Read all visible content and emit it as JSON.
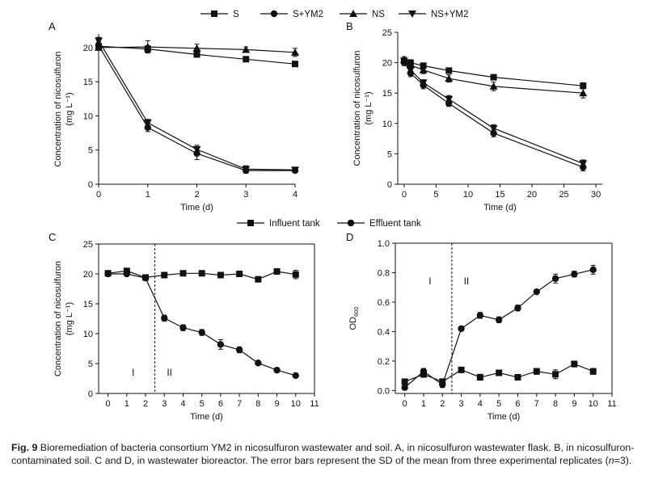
{
  "legend_top": {
    "items": [
      {
        "label": "S",
        "marker": "square"
      },
      {
        "label": "S+YM2",
        "marker": "circle"
      },
      {
        "label": "NS",
        "marker": "triangle-up"
      },
      {
        "label": "NS+YM2",
        "marker": "triangle-down"
      }
    ]
  },
  "legend_bottom": {
    "items": [
      {
        "label": "Influent tank",
        "marker": "square"
      },
      {
        "label": "Effluent tank",
        "marker": "circle"
      }
    ]
  },
  "caption": {
    "prefix": "Fig. 9",
    "text": " Bioremediation of bacteria consortium YM2 in nicosulfuron wastewater and soil.  A, in nicosulfuron wastewater flask.  B, in nicosulfuron-contaminated soil.  C and D, in wastewater bioreactor.  The error bars represent the SD of the mean from three experimental replicates (",
    "n_italic": "n",
    "suffix": "=3)."
  },
  "chart_data": [
    {
      "panel": "A",
      "type": "line",
      "xlabel": "Time (d)",
      "ylabel": [
        "Concentration of nicosulfuron",
        "(mg L⁻¹)"
      ],
      "xlim": [
        0,
        4
      ],
      "ylim": [
        0,
        22
      ],
      "xticks": [
        0,
        1,
        2,
        3,
        4
      ],
      "yticks": [
        0,
        5,
        10,
        15,
        20
      ],
      "series": [
        {
          "name": "S",
          "marker": "square",
          "x": [
            0,
            1,
            2,
            3,
            4
          ],
          "y": [
            20.2,
            19.8,
            19.0,
            18.3,
            17.6
          ],
          "err": [
            0.4,
            0.5,
            0.4,
            0.3,
            0.3
          ]
        },
        {
          "name": "S+YM2",
          "marker": "circle",
          "x": [
            0,
            1,
            2,
            3,
            4
          ],
          "y": [
            20.3,
            8.3,
            4.5,
            2.0,
            2.0
          ],
          "err": [
            0.5,
            0.6,
            0.9,
            0.4,
            0.3
          ]
        },
        {
          "name": "NS",
          "marker": "triangle-up",
          "x": [
            0,
            1,
            2,
            3,
            4
          ],
          "y": [
            20.0,
            20.1,
            19.9,
            19.7,
            19.3
          ],
          "err": [
            0.3,
            0.9,
            0.6,
            0.4,
            0.6
          ]
        },
        {
          "name": "NS+YM2",
          "marker": "triangle-down",
          "x": [
            0,
            1,
            2,
            3,
            4
          ],
          "y": [
            21.0,
            9.0,
            5.1,
            2.2,
            2.1
          ],
          "err": [
            0.5,
            0.5,
            0.6,
            0.5,
            0.3
          ]
        }
      ]
    },
    {
      "panel": "B",
      "type": "line",
      "xlabel": "Time (d)",
      "ylabel": [
        "Concentration of nicosulfuron",
        "(mg L⁻¹)"
      ],
      "xlim": [
        -1,
        31
      ],
      "ylim": [
        0,
        25
      ],
      "xticks": [
        0,
        5,
        10,
        15,
        20,
        25,
        30
      ],
      "yticks": [
        0,
        5,
        10,
        15,
        20,
        25
      ],
      "series": [
        {
          "name": "S",
          "marker": "square",
          "x": [
            0,
            1,
            3,
            7,
            14,
            28
          ],
          "y": [
            20.2,
            20.0,
            19.5,
            18.7,
            17.6,
            16.2
          ],
          "err": [
            0.5,
            0.5,
            0.4,
            0.4,
            0.4,
            0.5
          ]
        },
        {
          "name": "S+YM2",
          "marker": "circle",
          "x": [
            0,
            1,
            3,
            7,
            14,
            28
          ],
          "y": [
            20.1,
            18.3,
            16.3,
            13.3,
            8.4,
            2.8
          ],
          "err": [
            0.6,
            0.6,
            0.6,
            0.5,
            0.6,
            0.6
          ]
        },
        {
          "name": "NS",
          "marker": "triangle-up",
          "x": [
            0,
            1,
            3,
            7,
            14,
            28
          ],
          "y": [
            20.5,
            19.6,
            18.8,
            17.4,
            16.1,
            15.0
          ],
          "err": [
            0.5,
            0.5,
            0.6,
            0.6,
            0.7,
            0.8
          ]
        },
        {
          "name": "NS+YM2",
          "marker": "triangle-down",
          "x": [
            0,
            1,
            3,
            7,
            14,
            28
          ],
          "y": [
            20.3,
            18.8,
            16.7,
            14.0,
            9.2,
            3.4
          ],
          "err": [
            0.5,
            0.5,
            0.5,
            0.6,
            0.6,
            0.6
          ]
        }
      ]
    },
    {
      "panel": "C",
      "type": "line",
      "xlabel": "Time (d)",
      "ylabel": [
        "Concentration of nicosulfuron",
        "(mg L⁻¹)"
      ],
      "xlim": [
        -0.5,
        11
      ],
      "ylim": [
        0,
        25
      ],
      "xticks": [
        0,
        1,
        2,
        3,
        4,
        5,
        6,
        7,
        8,
        9,
        10,
        11
      ],
      "yticks": [
        0,
        5,
        10,
        15,
        20,
        25
      ],
      "divider_x": 2.5,
      "phase_labels": [
        "I",
        "II"
      ],
      "series": [
        {
          "name": "Influent tank",
          "marker": "square",
          "x": [
            0,
            1,
            2,
            3,
            4,
            5,
            6,
            7,
            8,
            9,
            10
          ],
          "y": [
            20.1,
            20.5,
            19.4,
            19.8,
            20.1,
            20.1,
            19.8,
            20.0,
            19.1,
            20.4,
            19.9
          ],
          "err": [
            0.3,
            0.3,
            0.3,
            0.4,
            0.3,
            0.2,
            0.3,
            0.3,
            0.4,
            0.3,
            0.7
          ]
        },
        {
          "name": "Effluent tank",
          "marker": "circle",
          "x": [
            0,
            1,
            2,
            3,
            4,
            5,
            6,
            7,
            8,
            9,
            10
          ],
          "y": [
            20.0,
            20.0,
            19.3,
            12.6,
            11.0,
            10.2,
            8.2,
            7.3,
            5.1,
            3.9,
            3.0
          ],
          "err": [
            0.3,
            0.3,
            0.3,
            0.5,
            0.5,
            0.5,
            0.8,
            0.5,
            0.3,
            0.3,
            0.2
          ]
        }
      ]
    },
    {
      "panel": "D",
      "type": "line",
      "xlabel": "Time (d)",
      "ylabel": [
        "OD",
        "600"
      ],
      "xlim": [
        -0.5,
        11
      ],
      "ylim": [
        -0.02,
        1.0
      ],
      "xticks": [
        0,
        1,
        2,
        3,
        4,
        5,
        6,
        7,
        8,
        9,
        10,
        11
      ],
      "yticks": [
        0.0,
        0.2,
        0.4,
        0.6,
        0.8,
        1.0
      ],
      "divider_x": 2.5,
      "phase_labels": [
        "I",
        "II"
      ],
      "series": [
        {
          "name": "Influent tank",
          "marker": "square",
          "x": [
            0,
            1,
            2,
            3,
            4,
            5,
            6,
            7,
            8,
            9,
            10
          ],
          "y": [
            0.06,
            0.11,
            0.06,
            0.14,
            0.09,
            0.12,
            0.09,
            0.13,
            0.11,
            0.18,
            0.13
          ],
          "err": [
            0.01,
            0.02,
            0.02,
            0.01,
            0.02,
            0.01,
            0.01,
            0.02,
            0.03,
            0.02,
            0.02
          ]
        },
        {
          "name": "Effluent tank",
          "marker": "circle",
          "x": [
            0,
            1,
            2,
            3,
            4,
            5,
            6,
            7,
            8,
            9,
            10
          ],
          "y": [
            0.02,
            0.13,
            0.04,
            0.42,
            0.51,
            0.48,
            0.56,
            0.67,
            0.76,
            0.79,
            0.82
          ],
          "err": [
            0.01,
            0.02,
            0.02,
            0.01,
            0.02,
            0.02,
            0.02,
            0.01,
            0.03,
            0.02,
            0.03
          ]
        }
      ]
    }
  ]
}
